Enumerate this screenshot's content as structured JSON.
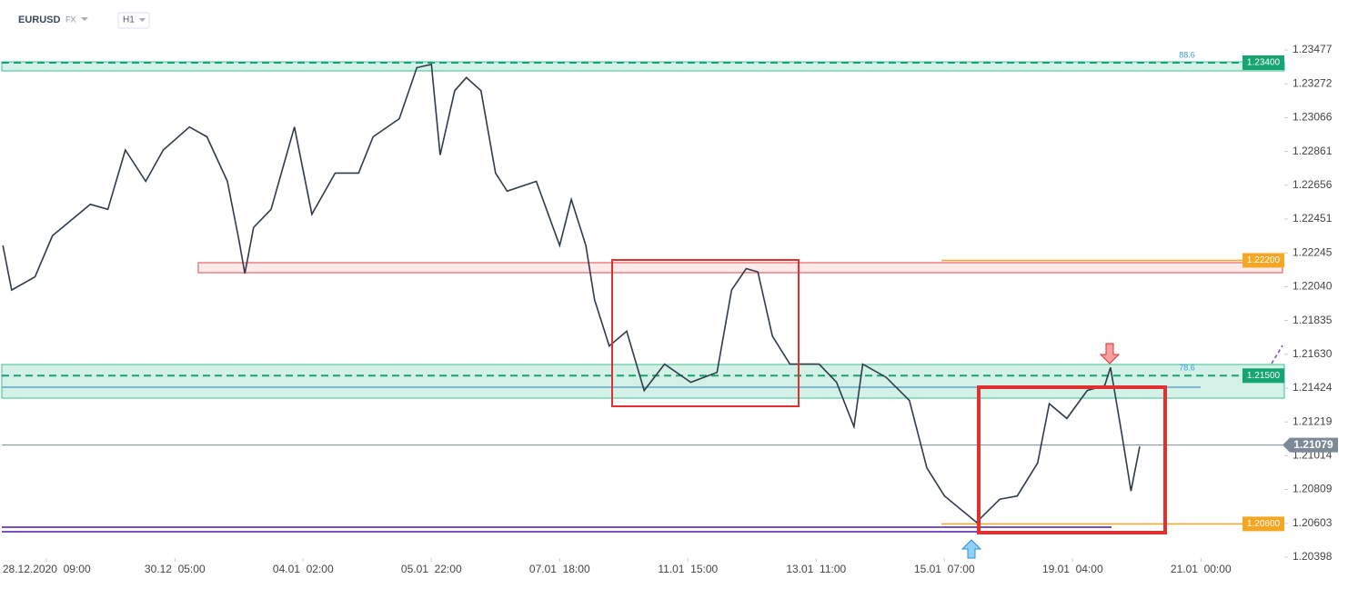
{
  "header": {
    "symbol": "EURUSD",
    "market": "FX",
    "timeframe": "H1"
  },
  "chart_data": {
    "type": "line",
    "x": [
      -15,
      -12,
      -4,
      2,
      15,
      21,
      27,
      34,
      40,
      49,
      55,
      62,
      66,
      68,
      71,
      77,
      85,
      91,
      99,
      107,
      112,
      121,
      127,
      132,
      135,
      140,
      144,
      149,
      154,
      158,
      168,
      176,
      180,
      185,
      188,
      193,
      199,
      205,
      212,
      221,
      230,
      235,
      240,
      244,
      249,
      255,
      265,
      271,
      277,
      280,
      288,
      296,
      302,
      308,
      319,
      327,
      333,
      340,
      344,
      350,
      357,
      363,
      365,
      369,
      372,
      375
    ],
    "series": [
      {
        "name": "EURUSD",
        "color": "#2f3b4a",
        "values": [
          1.2229,
          1.2202,
          1.221,
          1.2235,
          1.2254,
          1.2251,
          1.2287,
          1.2268,
          1.2287,
          1.2301,
          1.2295,
          1.2268,
          1.2232,
          1.2212,
          1.224,
          1.2251,
          1.2301,
          1.2248,
          1.2273,
          1.2273,
          1.2295,
          1.2306,
          1.2337,
          1.2339,
          1.2284,
          1.2323,
          1.2331,
          1.2323,
          1.2273,
          1.2262,
          1.2268,
          1.2229,
          1.2257,
          1.2229,
          1.2196,
          1.2168,
          1.2177,
          1.2141,
          1.2157,
          1.2146,
          1.2152,
          1.2202,
          1.2215,
          1.2213,
          1.2174,
          1.2157,
          1.2157,
          1.2146,
          1.2119,
          1.2157,
          1.2149,
          1.2135,
          1.2094,
          1.2077,
          1.2061,
          1.2075,
          1.2077,
          1.2097,
          1.2133,
          1.2124,
          1.2141,
          1.2144,
          1.2155,
          1.2113,
          1.208,
          1.2107
        ]
      }
    ],
    "xlim": [
      -16,
      424
    ],
    "xticks": [
      {
        "value": 0,
        "label": "28.12.2020  09:00"
      },
      {
        "value": 44,
        "label": "30.12  05:00"
      },
      {
        "value": 88,
        "label": "04.01  02:00"
      },
      {
        "value": 132,
        "label": "05.01  22:00"
      },
      {
        "value": 176,
        "label": "07.01  18:00"
      },
      {
        "value": 220,
        "label": "11.01  15:00"
      },
      {
        "value": 264,
        "label": "13.01  11:00"
      },
      {
        "value": 308,
        "label": "15.01  07:00"
      },
      {
        "value": 352,
        "label": "19.01  04:00"
      },
      {
        "value": 396,
        "label": "21.01  00:00"
      }
    ],
    "ylim": [
      1.20398,
      1.2356
    ],
    "yticks": [
      1.23477,
      1.23272,
      1.23066,
      1.22861,
      1.22656,
      1.22451,
      1.22245,
      {
        "value": 1.2204,
        "label": "1.22040"
      },
      1.21835,
      {
        "value": 1.2163,
        "label": "1.21630"
      },
      1.21424,
      1.21219,
      1.21014,
      1.20809,
      1.20603,
      1.20398
    ],
    "levels": [
      {
        "value": 1.234,
        "label": "1.23400",
        "color": "#16a571",
        "fib": "88.6"
      },
      {
        "value": 1.222,
        "label": "1.22200",
        "color": "#f5a623"
      },
      {
        "value": 1.215,
        "label": "1.21500",
        "color": "#16a571",
        "fib": "78.6"
      },
      {
        "value": 1.206,
        "label": "1.20600",
        "color": "#f5a623"
      }
    ],
    "last": 1.21079,
    "last_color": "#7c8a97"
  }
}
